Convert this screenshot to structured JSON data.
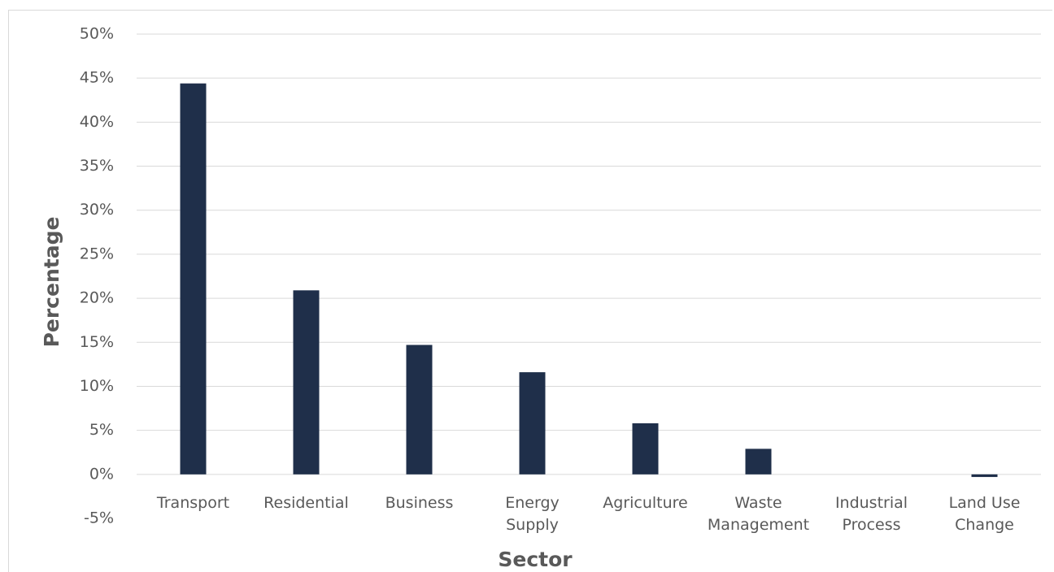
{
  "chart_data": {
    "type": "bar",
    "title": "",
    "xlabel": "Sector",
    "ylabel": "Percentage",
    "ylim": [
      -5,
      50
    ],
    "ytick_step": 5,
    "grid": true,
    "legend": "none",
    "bar_color": "#1f2f4a",
    "categories": [
      [
        "Transport"
      ],
      [
        "Residential"
      ],
      [
        "Business"
      ],
      [
        "Energy",
        "Supply"
      ],
      [
        "Agriculture"
      ],
      [
        "Waste",
        "Management"
      ],
      [
        "Industrial",
        "Process"
      ],
      [
        "Land Use",
        "Change"
      ]
    ],
    "values": [
      44.4,
      20.9,
      14.7,
      11.6,
      5.8,
      2.9,
      0.0,
      -0.3
    ]
  }
}
